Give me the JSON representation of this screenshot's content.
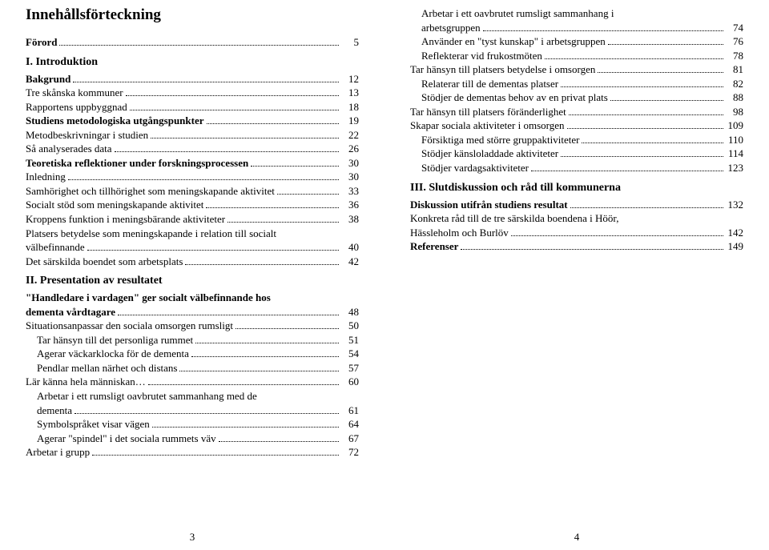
{
  "left": {
    "title": "Innehållsförteckning",
    "sections": [
      {
        "type": "line",
        "bold": true,
        "indent": 0,
        "label": "Förord",
        "page": "5"
      },
      {
        "type": "head",
        "label": "I. Introduktion"
      },
      {
        "type": "line",
        "bold": true,
        "indent": 0,
        "label": "Bakgrund",
        "page": "12"
      },
      {
        "type": "line",
        "bold": false,
        "indent": 0,
        "label": "Tre skånska kommuner",
        "page": "13"
      },
      {
        "type": "line",
        "bold": false,
        "indent": 0,
        "label": "Rapportens uppbyggnad",
        "page": "18"
      },
      {
        "type": "line",
        "bold": true,
        "indent": 0,
        "label": "Studiens metodologiska utgångspunkter",
        "page": "19"
      },
      {
        "type": "line",
        "bold": false,
        "indent": 0,
        "label": "Metodbeskrivningar i studien",
        "page": "22"
      },
      {
        "type": "line",
        "bold": false,
        "indent": 0,
        "label": "Så analyserades data",
        "page": "26"
      },
      {
        "type": "line",
        "bold": true,
        "indent": 0,
        "label": "Teoretiska reflektioner under forskningsprocessen",
        "page": "30"
      },
      {
        "type": "line",
        "bold": false,
        "indent": 0,
        "label": "Inledning",
        "page": "30"
      },
      {
        "type": "line",
        "bold": false,
        "indent": 0,
        "label": "Samhörighet och tillhörighet som meningskapande aktivitet",
        "page": "33"
      },
      {
        "type": "line",
        "bold": false,
        "indent": 0,
        "label": "Socialt stöd som meningskapande aktivitet",
        "page": "36"
      },
      {
        "type": "line",
        "bold": false,
        "indent": 0,
        "label": "Kroppens funktion i meningsbärande aktiviteter",
        "page": "38"
      },
      {
        "type": "wrap",
        "indent": 0,
        "lines": [
          "Platsers betydelse som meningskapande i relation till socialt"
        ],
        "last": {
          "label": "välbefinnande",
          "page": "40"
        }
      },
      {
        "type": "line",
        "bold": false,
        "indent": 0,
        "label": "Det särskilda boendet som arbetsplats",
        "page": "42"
      },
      {
        "type": "head",
        "label": "II. Presentation av resultatet"
      },
      {
        "type": "wrap",
        "bold": true,
        "indent": 0,
        "lines": [
          "\"Handledare i vardagen\" ger socialt välbefinnande hos"
        ],
        "last": {
          "label": "dementa vårdtagare",
          "page": "48"
        }
      },
      {
        "type": "line",
        "bold": false,
        "indent": 0,
        "label": "Situationsanpassar den sociala omsorgen rumsligt",
        "page": "50"
      },
      {
        "type": "line",
        "bold": false,
        "indent": 1,
        "label": "Tar hänsyn till det personliga rummet",
        "page": "51"
      },
      {
        "type": "line",
        "bold": false,
        "indent": 1,
        "label": "Agerar väckarklocka för de dementa",
        "page": "54"
      },
      {
        "type": "line",
        "bold": false,
        "indent": 1,
        "label": "Pendlar mellan närhet och distans",
        "page": "57"
      },
      {
        "type": "line",
        "bold": false,
        "indent": 0,
        "label": "Lär känna hela människan…",
        "page": "60"
      },
      {
        "type": "wrap",
        "indent": 1,
        "lines": [
          "Arbetar i ett rumsligt oavbrutet sammanhang med de"
        ],
        "last": {
          "label": "dementa",
          "page": "61"
        }
      },
      {
        "type": "line",
        "bold": false,
        "indent": 1,
        "label": "Symbolspråket visar vägen",
        "page": "64"
      },
      {
        "type": "line",
        "bold": false,
        "indent": 1,
        "label": "Agerar \"spindel\" i det sociala rummets väv",
        "page": "67"
      },
      {
        "type": "line",
        "bold": false,
        "indent": 0,
        "label": "Arbetar i grupp",
        "page": "72"
      }
    ],
    "pagenum": "3"
  },
  "right": {
    "sections": [
      {
        "type": "wrap",
        "indent": 1,
        "lines": [
          "Arbetar i ett oavbrutet rumsligt sammanhang i"
        ],
        "last": {
          "label": "arbetsgruppen",
          "page": "74"
        }
      },
      {
        "type": "line",
        "bold": false,
        "indent": 1,
        "label": "Använder en \"tyst kunskap\" i arbetsgruppen",
        "page": "76"
      },
      {
        "type": "line",
        "bold": false,
        "indent": 1,
        "label": "Reflekterar vid frukostmöten",
        "page": "78"
      },
      {
        "type": "line",
        "bold": false,
        "indent": 0,
        "label": "Tar hänsyn till platsers betydelse i omsorgen",
        "page": "81"
      },
      {
        "type": "line",
        "bold": false,
        "indent": 1,
        "label": "Relaterar till de dementas platser",
        "page": "82"
      },
      {
        "type": "line",
        "bold": false,
        "indent": 1,
        "label": "Stödjer de dementas behov av en privat plats",
        "page": "88"
      },
      {
        "type": "line",
        "bold": false,
        "indent": 0,
        "label": "Tar hänsyn till platsers föränderlighet",
        "page": "98"
      },
      {
        "type": "line",
        "bold": false,
        "indent": 0,
        "label": "Skapar sociala aktiviteter i omsorgen",
        "page": "109"
      },
      {
        "type": "line",
        "bold": false,
        "indent": 1,
        "label": "Försiktiga med större gruppaktiviteter",
        "page": "110"
      },
      {
        "type": "line",
        "bold": false,
        "indent": 1,
        "label": "Stödjer känsloladdade aktiviteter",
        "page": "114"
      },
      {
        "type": "line",
        "bold": false,
        "indent": 1,
        "label": "Stödjer vardagsaktiviteter",
        "page": "123"
      },
      {
        "type": "head",
        "label": "III. Slutdiskussion och råd till kommunerna"
      },
      {
        "type": "line",
        "bold": true,
        "indent": 0,
        "label": "Diskussion utifrån studiens resultat",
        "page": "132"
      },
      {
        "type": "wrap",
        "indent": 0,
        "lines": [
          "Konkreta råd till de tre särskilda boendena i Höör,"
        ],
        "last": {
          "label": "Hässleholm och Burlöv",
          "page": "142"
        }
      },
      {
        "type": "line",
        "bold": true,
        "indent": 0,
        "label": "Referenser",
        "page": "149"
      }
    ],
    "pagenum": "4"
  }
}
